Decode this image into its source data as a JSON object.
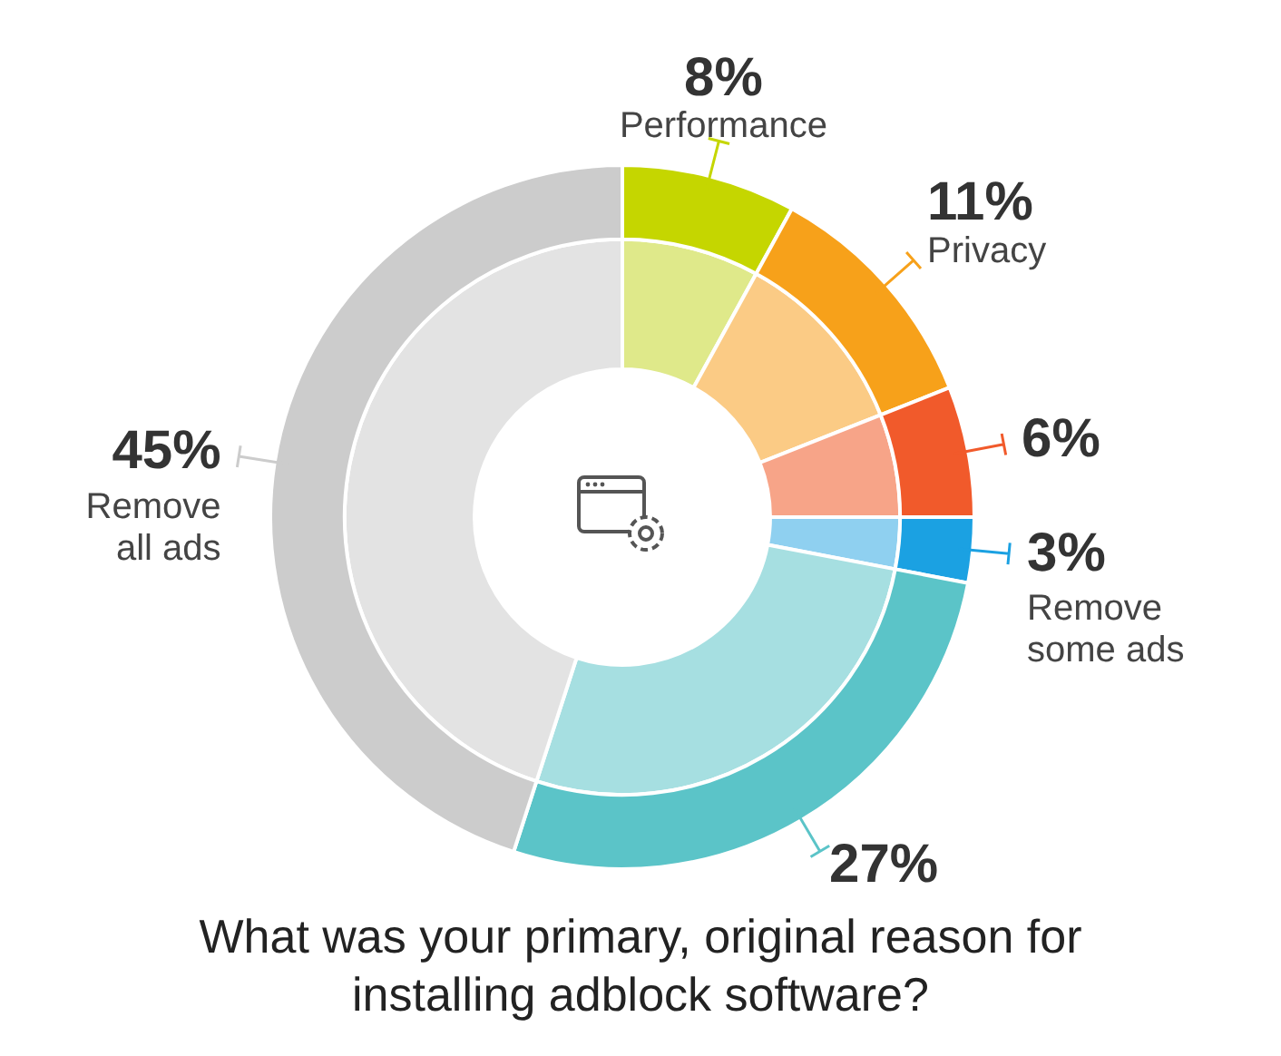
{
  "chart_data": {
    "type": "donut",
    "title": "What was your primary, original reason for installing adblock software?",
    "categories": [
      "Performance",
      "Privacy",
      null,
      "Remove some ads",
      null,
      "Remove all ads"
    ],
    "series": [
      {
        "values": [
          8,
          11,
          6,
          3,
          27,
          45
        ],
        "colors": [
          "#c5d600",
          "#f7a11a",
          "#f15a2b",
          "#1ba1e2",
          "#5bc4c8",
          "#cccccc"
        ],
        "value_labels": [
          "8%",
          "11%",
          "6%",
          "3%",
          "27%",
          "45%"
        ]
      },
      {
        "values": [
          8,
          11,
          6,
          3,
          27,
          45
        ],
        "colors": [
          "#dfe98a",
          "#fbcb85",
          "#f7a488",
          "#8fd0f0",
          "#a6dfe1",
          "#e3e3e3"
        ]
      }
    ],
    "legend": false
  }
}
